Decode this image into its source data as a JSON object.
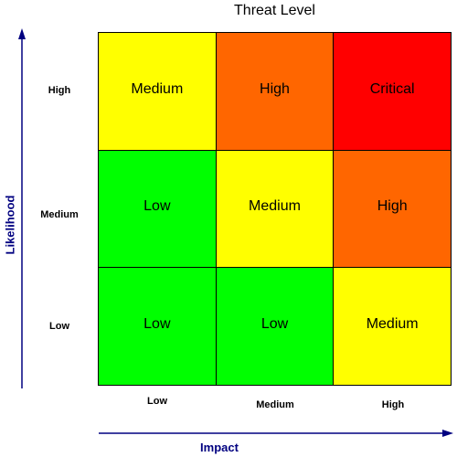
{
  "title": "Threat Level",
  "y_axis": {
    "label": "Likelihood",
    "ticks": [
      "High",
      "Medium",
      "Low"
    ]
  },
  "x_axis": {
    "label": "Impact",
    "ticks": [
      "Low",
      "Medium",
      "High"
    ]
  },
  "colors": {
    "low": "#00ff00",
    "medium": "#ffff00",
    "high": "#ff6600",
    "critical": "#ff0000",
    "axis": "#000080"
  },
  "matrix": [
    [
      {
        "label": "Medium",
        "level": "medium"
      },
      {
        "label": "High",
        "level": "high"
      },
      {
        "label": "Critical",
        "level": "critical"
      }
    ],
    [
      {
        "label": "Low",
        "level": "low"
      },
      {
        "label": "Medium",
        "level": "medium"
      },
      {
        "label": "High",
        "level": "high"
      }
    ],
    [
      {
        "label": "Low",
        "level": "low"
      },
      {
        "label": "Low",
        "level": "low"
      },
      {
        "label": "Medium",
        "level": "medium"
      }
    ]
  ]
}
